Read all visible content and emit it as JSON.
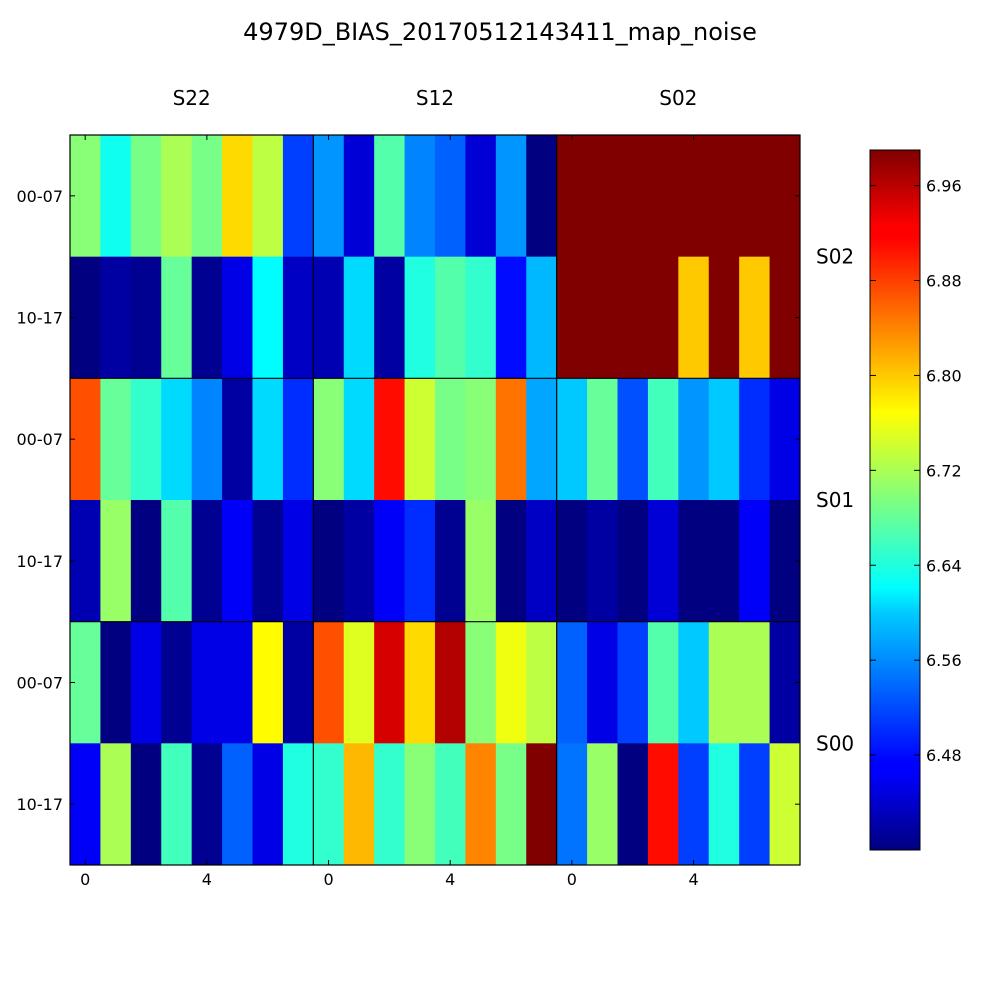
{
  "chart_data": {
    "type": "heatmap",
    "title": "4979D_BIAS_20170512143411_map_noise",
    "column_groups": [
      "S22",
      "S12",
      "S02"
    ],
    "row_groups": [
      "S02",
      "S01",
      "S00"
    ],
    "row_labels": [
      "00-07",
      "10-17",
      "00-07",
      "10-17",
      "00-07",
      "10-17"
    ],
    "x_ticks": [
      "0",
      "4",
      "0",
      "4",
      "0",
      "4"
    ],
    "colorbar": {
      "colormap": "jet",
      "vmin": 6.4,
      "vmax": 6.99,
      "ticks": [
        "6.96",
        "6.88",
        "6.80",
        "6.72",
        "6.64",
        "6.56",
        "6.48"
      ]
    },
    "values": [
      [
        6.7,
        6.63,
        6.69,
        6.72,
        6.69,
        6.79,
        6.73,
        6.51,
        6.56,
        6.45,
        6.67,
        6.55,
        6.53,
        6.45,
        6.56,
        6.4,
        6.99,
        6.99,
        6.99,
        6.99,
        6.99,
        6.99,
        6.99,
        6.99
      ],
      [
        6.4,
        6.42,
        6.41,
        6.68,
        6.41,
        6.46,
        6.62,
        6.44,
        6.43,
        6.6,
        6.42,
        6.64,
        6.67,
        6.65,
        6.48,
        6.58,
        6.99,
        6.99,
        6.99,
        6.99,
        6.8,
        6.99,
        6.8,
        6.99
      ],
      [
        6.87,
        6.68,
        6.65,
        6.6,
        6.55,
        6.42,
        6.6,
        6.5,
        6.7,
        6.6,
        6.91,
        6.74,
        6.69,
        6.7,
        6.85,
        6.57,
        6.59,
        6.68,
        6.52,
        6.66,
        6.56,
        6.59,
        6.5,
        6.46
      ],
      [
        6.43,
        6.71,
        6.4,
        6.67,
        6.41,
        6.47,
        6.41,
        6.46,
        6.4,
        6.42,
        6.47,
        6.5,
        6.41,
        6.71,
        6.4,
        6.44,
        6.4,
        6.42,
        6.4,
        6.45,
        6.4,
        6.4,
        6.47,
        6.4
      ],
      [
        6.68,
        6.4,
        6.46,
        6.41,
        6.46,
        6.46,
        6.77,
        6.42,
        6.87,
        6.75,
        6.94,
        6.79,
        6.96,
        6.7,
        6.76,
        6.73,
        6.53,
        6.46,
        6.51,
        6.67,
        6.59,
        6.72,
        6.72,
        6.42
      ],
      [
        6.47,
        6.72,
        6.4,
        6.66,
        6.41,
        6.53,
        6.46,
        6.64,
        6.65,
        6.81,
        6.65,
        6.7,
        6.66,
        6.84,
        6.69,
        6.99,
        6.54,
        6.71,
        6.4,
        6.91,
        6.51,
        6.64,
        6.51,
        6.74
      ]
    ]
  }
}
